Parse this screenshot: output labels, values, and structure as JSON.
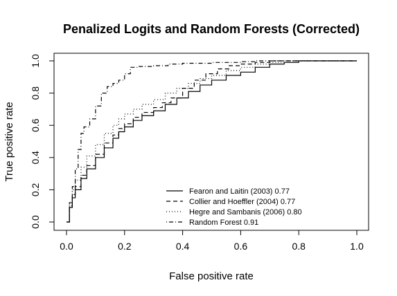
{
  "chart_data": {
    "type": "line",
    "title": "Penalized Logits and Random Forests (Corrected)",
    "xlabel": "False positive rate",
    "ylabel": "True positive rate",
    "xlim": [
      0,
      1
    ],
    "ylim": [
      0,
      1
    ],
    "xticks": [
      "0.0",
      "0.2",
      "0.4",
      "0.6",
      "0.8",
      "1.0"
    ],
    "yticks": [
      "0.0",
      "0.2",
      "0.4",
      "0.6",
      "0.8",
      "1.0"
    ],
    "grid": false,
    "legend_position": "bottom-right",
    "series": [
      {
        "name": "Fearon and Laitin (2003) 0.77",
        "line_style": "solid",
        "color": "#000000",
        "x": [
          0,
          0.01,
          0.02,
          0.03,
          0.05,
          0.07,
          0.1,
          0.13,
          0.16,
          0.18,
          0.2,
          0.23,
          0.26,
          0.3,
          0.34,
          0.38,
          0.42,
          0.46,
          0.5,
          0.55,
          0.6,
          0.65,
          0.7,
          0.75,
          0.8,
          1.0
        ],
        "y": [
          0,
          0.09,
          0.15,
          0.2,
          0.27,
          0.33,
          0.4,
          0.46,
          0.52,
          0.56,
          0.59,
          0.63,
          0.66,
          0.69,
          0.73,
          0.77,
          0.81,
          0.85,
          0.88,
          0.91,
          0.93,
          0.96,
          0.98,
          0.99,
          1.0,
          1.0
        ]
      },
      {
        "name": "Collier and Hoeffler (2004) 0.77",
        "line_style": "dashed",
        "color": "#000000",
        "x": [
          0,
          0.01,
          0.02,
          0.03,
          0.05,
          0.07,
          0.1,
          0.13,
          0.16,
          0.18,
          0.2,
          0.23,
          0.26,
          0.3,
          0.33,
          0.36,
          0.4,
          0.44,
          0.48,
          0.52,
          0.56,
          0.6,
          0.65,
          0.7,
          0.8,
          1.0
        ],
        "y": [
          0,
          0.1,
          0.17,
          0.22,
          0.29,
          0.35,
          0.42,
          0.49,
          0.54,
          0.58,
          0.61,
          0.65,
          0.68,
          0.71,
          0.74,
          0.77,
          0.83,
          0.88,
          0.92,
          0.95,
          0.97,
          0.98,
          0.99,
          1.0,
          1.0,
          1.0
        ]
      },
      {
        "name": "Hegre and Sambanis (2006) 0.80",
        "line_style": "dotted",
        "color": "#000000",
        "x": [
          0,
          0.01,
          0.02,
          0.03,
          0.05,
          0.07,
          0.1,
          0.13,
          0.16,
          0.18,
          0.2,
          0.23,
          0.26,
          0.3,
          0.34,
          0.38,
          0.42,
          0.46,
          0.5,
          0.55,
          0.6,
          0.65,
          0.7,
          0.75,
          0.8,
          1.0
        ],
        "y": [
          0,
          0.12,
          0.2,
          0.26,
          0.34,
          0.41,
          0.48,
          0.55,
          0.6,
          0.64,
          0.67,
          0.7,
          0.73,
          0.76,
          0.8,
          0.83,
          0.86,
          0.89,
          0.91,
          0.94,
          0.96,
          0.98,
          0.99,
          1.0,
          1.0,
          1.0
        ]
      },
      {
        "name": "Random Forest 0.91",
        "line_style": "dotdash",
        "color": "#000000",
        "x": [
          0,
          0.01,
          0.02,
          0.03,
          0.04,
          0.05,
          0.06,
          0.08,
          0.1,
          0.12,
          0.14,
          0.16,
          0.18,
          0.2,
          0.22,
          0.25,
          0.3,
          0.35,
          0.4,
          0.5,
          0.6,
          0.65,
          1.0
        ],
        "y": [
          0,
          0.12,
          0.22,
          0.33,
          0.45,
          0.55,
          0.59,
          0.64,
          0.72,
          0.8,
          0.84,
          0.86,
          0.88,
          0.92,
          0.96,
          0.965,
          0.97,
          0.98,
          0.985,
          0.99,
          0.995,
          1.0,
          1.0
        ]
      }
    ]
  }
}
